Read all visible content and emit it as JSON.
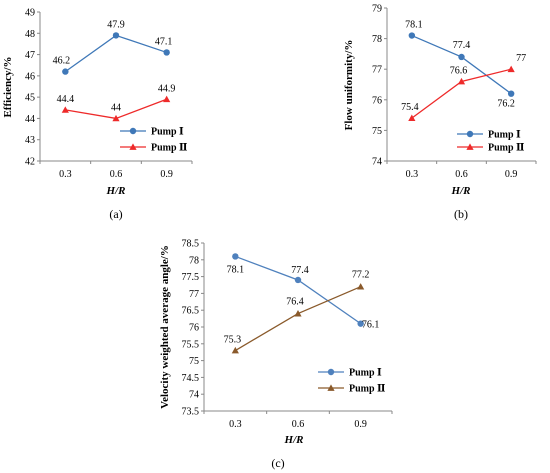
{
  "chart_data": [
    {
      "type": "line",
      "panel_label": "(a)",
      "categories": [
        "0.3",
        "0.6",
        "0.9"
      ],
      "xlabel": "H/R",
      "ylabel": "Efficiency/%",
      "ylim": [
        42,
        49
      ],
      "yticks": [
        "42",
        "43",
        "44",
        "45",
        "46",
        "47",
        "48",
        "49"
      ],
      "series": [
        {
          "name": "Pump Ⅰ",
          "values": [
            46.2,
            47.9,
            47.1
          ],
          "labels": [
            "46.2",
            "47.9",
            "47.1"
          ],
          "color": "#3f78b8",
          "marker": "circle"
        },
        {
          "name": "Pump Ⅱ",
          "values": [
            44.4,
            44.0,
            44.9
          ],
          "labels": [
            "44.4",
            "44",
            "44.9"
          ],
          "color": "#ee2a2a",
          "marker": "triangle"
        }
      ],
      "legend_position": "bottom-right",
      "grid": false
    },
    {
      "type": "line",
      "panel_label": "(b)",
      "categories": [
        "0.3",
        "0.6",
        "0.9"
      ],
      "xlabel": "H/R",
      "ylabel": "Flow uniformity/%",
      "ylim": [
        74,
        79
      ],
      "yticks": [
        "74",
        "75",
        "76",
        "77",
        "78",
        "79"
      ],
      "series": [
        {
          "name": "Pump Ⅰ",
          "values": [
            78.1,
            77.4,
            76.2
          ],
          "labels": [
            "78.1",
            "77.4",
            "76.2"
          ],
          "color": "#3f78b8",
          "marker": "circle"
        },
        {
          "name": "Pump Ⅱ",
          "values": [
            75.4,
            76.6,
            77.0
          ],
          "labels": [
            "75.4",
            "76.6",
            "77"
          ],
          "color": "#ee2a2a",
          "marker": "triangle"
        }
      ],
      "legend_position": "bottom-right",
      "grid": false
    },
    {
      "type": "line",
      "panel_label": "(c)",
      "categories": [
        "0.3",
        "0.6",
        "0.9"
      ],
      "xlabel": "H/R",
      "ylabel": "Velocity weighted average angle/%",
      "ylim": [
        73.5,
        78.5
      ],
      "yticks": [
        "73.5",
        "74",
        "74.5",
        "75",
        "75.5",
        "76",
        "76.5",
        "77",
        "77.5",
        "78",
        "78.5"
      ],
      "series": [
        {
          "name": "Pump Ⅰ",
          "values": [
            78.1,
            77.4,
            76.1
          ],
          "labels": [
            "78.1",
            "77.4",
            "76.1"
          ],
          "color": "#4f81bd",
          "marker": "circle"
        },
        {
          "name": "Pump Ⅱ",
          "values": [
            75.3,
            76.4,
            77.2
          ],
          "labels": [
            "75.3",
            "76.4",
            "77.2"
          ],
          "color": "#8a5a2b",
          "marker": "triangle"
        }
      ],
      "legend_position": "bottom-right",
      "grid": false
    }
  ]
}
